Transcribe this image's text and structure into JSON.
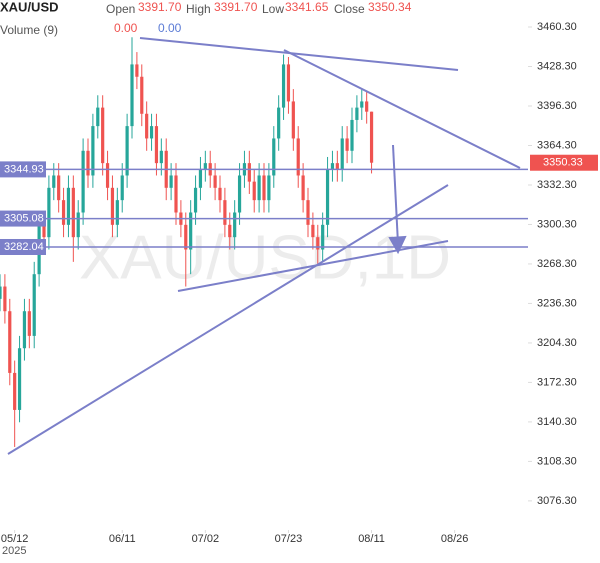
{
  "header": {
    "symbol": "XAU/USD",
    "open_label": "Open",
    "open": "3391.70",
    "high_label": "High",
    "high": "3391.70",
    "low_label": "Low",
    "low": "3341.65",
    "close_label": "Close",
    "close": "3350.34",
    "volume_label": "Volume (9)",
    "volume_a": "0.00",
    "volume_b": "0.00"
  },
  "chart_data": {
    "type": "candlestick",
    "watermark": "XAU/USD,1D",
    "x": [
      0,
      1,
      2,
      3,
      4,
      5,
      6,
      7,
      8,
      9,
      10,
      11,
      12,
      13,
      14,
      15,
      16,
      17,
      18,
      19,
      20,
      21,
      22,
      23,
      24,
      25,
      26,
      27,
      28,
      29,
      30,
      31,
      32,
      33,
      34,
      35,
      36,
      37,
      38,
      39,
      40,
      41,
      42,
      43,
      44,
      45,
      46,
      47,
      48,
      49,
      50,
      51,
      52,
      53,
      54,
      55,
      56,
      57,
      58,
      59,
      60,
      61,
      62,
      63,
      64,
      65,
      66,
      67,
      68,
      69,
      70,
      71,
      72,
      73,
      74,
      75,
      76
    ],
    "open": [
      3240,
      3250,
      3230,
      3180,
      3150,
      3200,
      3230,
      3210,
      3260,
      3300,
      3290,
      3330,
      3340,
      3320,
      3300,
      3330,
      3290,
      3310,
      3360,
      3340,
      3380,
      3395,
      3350,
      3330,
      3300,
      3320,
      3340,
      3380,
      3430,
      3420,
      3390,
      3370,
      3380,
      3350,
      3360,
      3330,
      3340,
      3310,
      3300,
      3280,
      3310,
      3330,
      3345,
      3350,
      3340,
      3330,
      3320,
      3300,
      3290,
      3310,
      3340,
      3350,
      3335,
      3320,
      3340,
      3320,
      3340,
      3370,
      3395,
      3430,
      3400,
      3370,
      3340,
      3320,
      3300,
      3290,
      3280,
      3300,
      3345,
      3350,
      3345,
      3370,
      3360,
      3385,
      3395,
      3400,
      3391.7
    ],
    "high": [
      3260,
      3260,
      3240,
      3190,
      3210,
      3240,
      3240,
      3270,
      3310,
      3310,
      3340,
      3350,
      3350,
      3330,
      3340,
      3340,
      3320,
      3370,
      3370,
      3390,
      3405,
      3405,
      3360,
      3340,
      3330,
      3350,
      3390,
      3452,
      3440,
      3430,
      3400,
      3390,
      3390,
      3370,
      3370,
      3350,
      3350,
      3320,
      3310,
      3320,
      3340,
      3355,
      3360,
      3360,
      3350,
      3340,
      3330,
      3310,
      3320,
      3350,
      3360,
      3360,
      3345,
      3350,
      3350,
      3350,
      3380,
      3405,
      3438,
      3436,
      3410,
      3380,
      3350,
      3330,
      3310,
      3300,
      3310,
      3355,
      3360,
      3360,
      3380,
      3380,
      3395,
      3405,
      3410,
      3408,
      3391.7
    ],
    "low": [
      3230,
      3220,
      3170,
      3120,
      3140,
      3190,
      3200,
      3200,
      3250,
      3280,
      3280,
      3320,
      3310,
      3290,
      3290,
      3270,
      3280,
      3300,
      3330,
      3330,
      3370,
      3340,
      3320,
      3290,
      3290,
      3310,
      3330,
      3370,
      3410,
      3380,
      3360,
      3360,
      3340,
      3340,
      3320,
      3320,
      3300,
      3290,
      3250,
      3260,
      3300,
      3320,
      3335,
      3330,
      3320,
      3310,
      3290,
      3280,
      3280,
      3300,
      3330,
      3325,
      3310,
      3310,
      3310,
      3310,
      3330,
      3360,
      3385,
      3390,
      3360,
      3330,
      3310,
      3290,
      3280,
      3268,
      3270,
      3290,
      3335,
      3335,
      3335,
      3350,
      3350,
      3375,
      3385,
      3382,
      3341.65
    ],
    "close": [
      3250,
      3230,
      3180,
      3150,
      3200,
      3230,
      3210,
      3260,
      3300,
      3290,
      3330,
      3340,
      3320,
      3300,
      3330,
      3290,
      3310,
      3360,
      3340,
      3380,
      3395,
      3350,
      3330,
      3300,
      3320,
      3340,
      3380,
      3430,
      3420,
      3390,
      3370,
      3380,
      3350,
      3360,
      3330,
      3340,
      3310,
      3300,
      3280,
      3310,
      3330,
      3345,
      3350,
      3340,
      3330,
      3320,
      3300,
      3290,
      3310,
      3340,
      3350,
      3335,
      3320,
      3340,
      3320,
      3340,
      3370,
      3395,
      3430,
      3400,
      3370,
      3340,
      3320,
      3300,
      3290,
      3280,
      3300,
      3345,
      3350,
      3345,
      3370,
      3360,
      3385,
      3395,
      3400,
      3391.7,
      3350.34
    ],
    "up_color": "#26a69a",
    "down_color": "#ef5350",
    "levels": [
      3344.93,
      3305.08,
      3282.04
    ],
    "level_color": "#7b7fc9",
    "last_price": 3350.33,
    "xlim": [
      0,
      108
    ],
    "xticks": [
      {
        "value": 3,
        "label": "05/12"
      },
      {
        "value": 25,
        "label": "06/11"
      },
      {
        "value": 42,
        "label": "07/02"
      },
      {
        "value": 59,
        "label": "07/23"
      },
      {
        "value": 76,
        "label": "08/11"
      },
      {
        "value": 93,
        "label": "08/26"
      }
    ],
    "year_label": "2025",
    "ylim": [
      3052.7,
      3482.2
    ],
    "yticks": [
      {
        "value": 3460.3,
        "label": "3460.30"
      },
      {
        "value": 3428.3,
        "label": "3428.30"
      },
      {
        "value": 3396.3,
        "label": "3396.30"
      },
      {
        "value": 3364.3,
        "label": "3364.30"
      },
      {
        "value": 3332.3,
        "label": "3332.30"
      },
      {
        "value": 3300.3,
        "label": "3300.30"
      },
      {
        "value": 3268.3,
        "label": "3268.30"
      },
      {
        "value": 3236.3,
        "label": "3236.30"
      },
      {
        "value": 3204.3,
        "label": "3204.30"
      },
      {
        "value": 3172.3,
        "label": "3172.30"
      },
      {
        "value": 3140.3,
        "label": "3140.30"
      },
      {
        "value": 3108.3,
        "label": "3108.30"
      },
      {
        "value": 3076.3,
        "label": "3076.30"
      }
    ]
  }
}
